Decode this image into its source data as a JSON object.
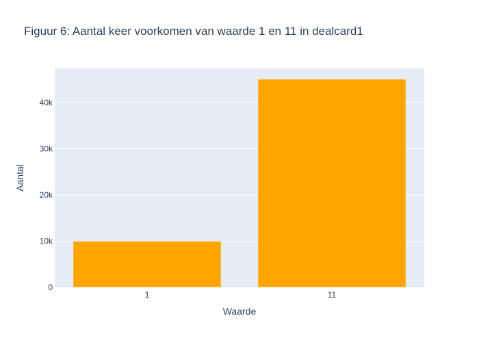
{
  "chart_data": {
    "type": "bar",
    "title": "Figuur 6: Aantal keer voorkomen van waarde 1 en 11 in dealcard1",
    "xlabel": "Waarde",
    "ylabel": "Aantal",
    "categories": [
      "1",
      "11"
    ],
    "values": [
      9950,
      45050
    ],
    "ylim": [
      0,
      47400
    ],
    "yticks": [
      0,
      10000,
      20000,
      30000,
      40000
    ],
    "ytick_labels": [
      "0",
      "10k",
      "20k",
      "30k",
      "40k"
    ],
    "grid": true,
    "legend": "none",
    "colors": {
      "bar": "#FFA500",
      "plot_background": "#E5ECF6",
      "text": "#2a3f5f"
    }
  }
}
